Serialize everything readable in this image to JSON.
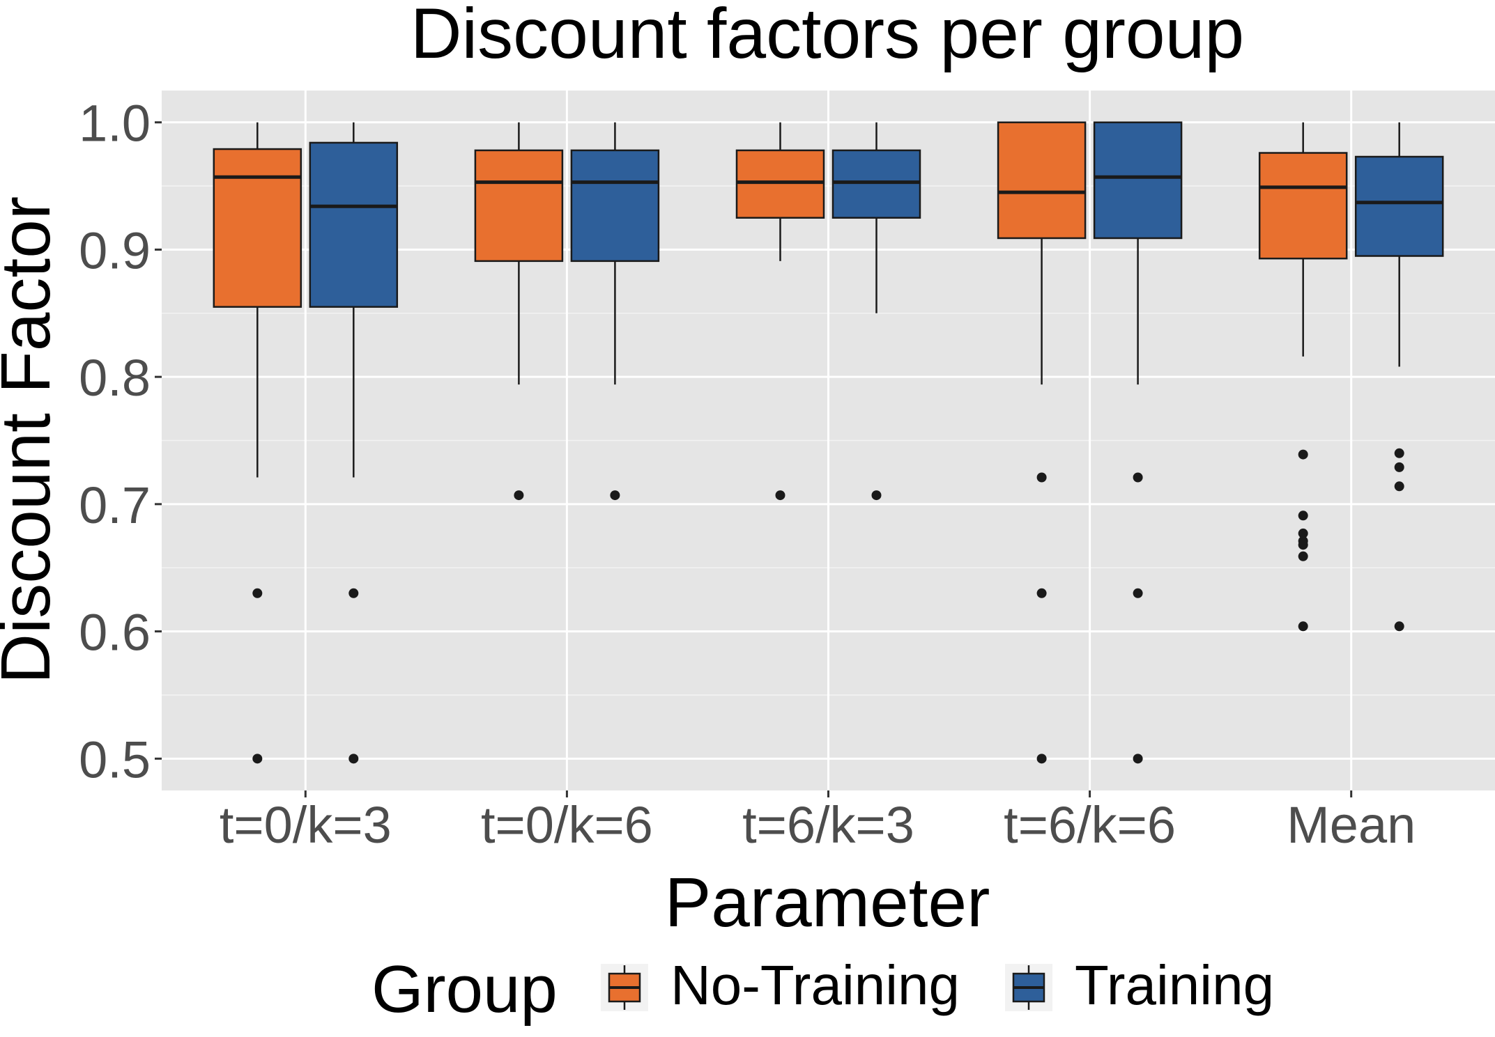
{
  "chart_data": {
    "type": "boxplot",
    "title": "Discount factors per group",
    "xlabel": "Parameter",
    "ylabel": "Discount Factor",
    "ylim": [
      0.475,
      1.025
    ],
    "yticks": [
      0.5,
      0.6,
      0.7,
      0.8,
      0.9,
      1.0
    ],
    "ytick_labels": [
      "0.5",
      "0.6",
      "0.7",
      "0.8",
      "0.9",
      "1.0"
    ],
    "categories": [
      "t=0/k=3",
      "t=0/k=6",
      "t=6/k=3",
      "t=6/k=6",
      "Mean"
    ],
    "grid": true,
    "legend": {
      "title": "Group",
      "position": "bottom"
    },
    "series": [
      {
        "name": "No-Training",
        "color": "#E8702F",
        "boxes": [
          {
            "min": 0.721,
            "q1": 0.855,
            "median": 0.957,
            "q3": 0.979,
            "max": 1.0,
            "outliers": [
              0.63,
              0.5
            ]
          },
          {
            "min": 0.794,
            "q1": 0.891,
            "median": 0.953,
            "q3": 0.978,
            "max": 1.0,
            "outliers": [
              0.707
            ]
          },
          {
            "min": 0.891,
            "q1": 0.925,
            "median": 0.953,
            "q3": 0.978,
            "max": 1.0,
            "outliers": [
              0.707
            ]
          },
          {
            "min": 0.794,
            "q1": 0.909,
            "median": 0.945,
            "q3": 1.0,
            "max": 1.0,
            "outliers": [
              0.721,
              0.63,
              0.5
            ]
          },
          {
            "min": 0.816,
            "q1": 0.893,
            "median": 0.949,
            "q3": 0.976,
            "max": 1.0,
            "outliers": [
              0.739,
              0.691,
              0.677,
              0.671,
              0.668,
              0.659,
              0.604
            ]
          }
        ]
      },
      {
        "name": "Training",
        "color": "#2E5F9A",
        "boxes": [
          {
            "min": 0.721,
            "q1": 0.855,
            "median": 0.934,
            "q3": 0.984,
            "max": 1.0,
            "outliers": [
              0.63,
              0.5
            ]
          },
          {
            "min": 0.794,
            "q1": 0.891,
            "median": 0.953,
            "q3": 0.978,
            "max": 1.0,
            "outliers": [
              0.707
            ]
          },
          {
            "min": 0.85,
            "q1": 0.925,
            "median": 0.953,
            "q3": 0.978,
            "max": 1.0,
            "outliers": [
              0.707
            ]
          },
          {
            "min": 0.794,
            "q1": 0.909,
            "median": 0.957,
            "q3": 1.0,
            "max": 1.0,
            "outliers": [
              0.721,
              0.63,
              0.5
            ]
          },
          {
            "min": 0.808,
            "q1": 0.895,
            "median": 0.937,
            "q3": 0.973,
            "max": 1.0,
            "outliers": [
              0.74,
              0.729,
              0.714,
              0.604
            ]
          }
        ]
      }
    ]
  }
}
